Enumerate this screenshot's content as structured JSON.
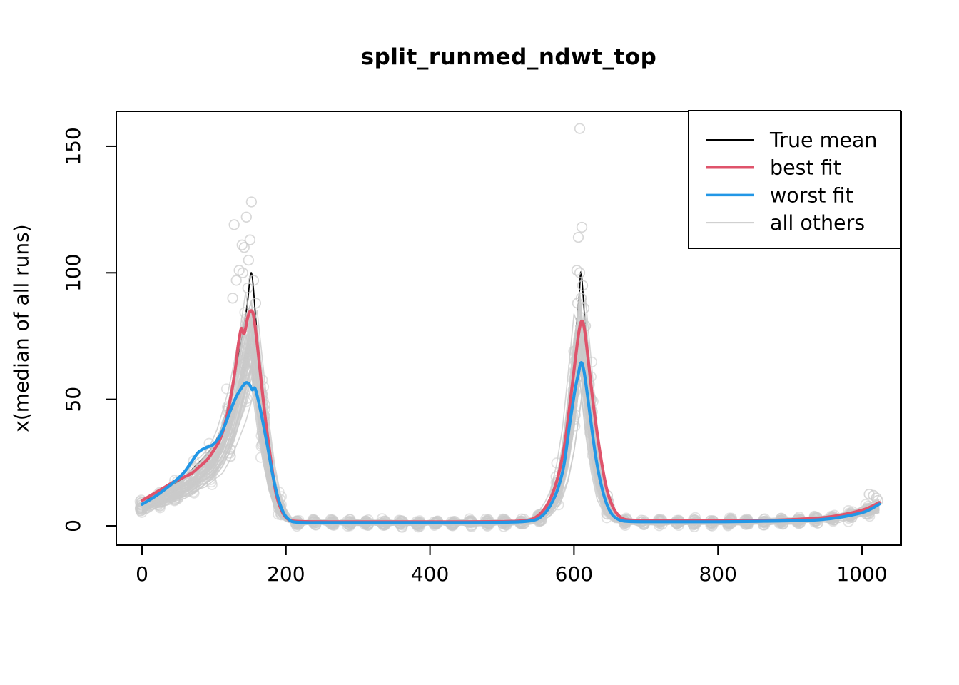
{
  "chart_data": {
    "type": "line",
    "title": "split_runmed_ndwt_top",
    "xlabel": "",
    "ylabel": "x(median of all runs)",
    "xlim": [
      0,
      1024
    ],
    "ylim": [
      0,
      157
    ],
    "x_ticks": [
      0,
      200,
      400,
      600,
      800,
      1000
    ],
    "y_ticks": [
      0,
      50,
      100,
      150
    ],
    "grid": false,
    "background": "#FFFFFF",
    "axis_color": "#000000",
    "legend": {
      "position": "top-right",
      "entries": [
        {
          "label": "True mean",
          "color": "#000000",
          "width": 2
        },
        {
          "label": "best fit",
          "color": "#DF536B",
          "width": 3.5
        },
        {
          "label": "worst fit",
          "color": "#2297E6",
          "width": 3.5
        },
        {
          "label": "all others",
          "color": "#C9C9C9",
          "width": 2
        }
      ]
    },
    "series": [
      {
        "name": "True mean",
        "color": "#000000",
        "width": 1.8,
        "points": [
          [
            0,
            9
          ],
          [
            12,
            11
          ],
          [
            24,
            13
          ],
          [
            36,
            15
          ],
          [
            48,
            17
          ],
          [
            60,
            19.5
          ],
          [
            72,
            23
          ],
          [
            84,
            26.5
          ],
          [
            96,
            30.5
          ],
          [
            108,
            37
          ],
          [
            118,
            46
          ],
          [
            128,
            58
          ],
          [
            138,
            73
          ],
          [
            146,
            87
          ],
          [
            152,
            100
          ],
          [
            158,
            82
          ],
          [
            164,
            62
          ],
          [
            172,
            40
          ],
          [
            180,
            22
          ],
          [
            190,
            9
          ],
          [
            200,
            3.5
          ],
          [
            212,
            1.8
          ],
          [
            240,
            1.5
          ],
          [
            300,
            1.5
          ],
          [
            380,
            1.5
          ],
          [
            460,
            1.5
          ],
          [
            530,
            1.8
          ],
          [
            548,
            3
          ],
          [
            562,
            7
          ],
          [
            574,
            14
          ],
          [
            584,
            26
          ],
          [
            594,
            48
          ],
          [
            602,
            75
          ],
          [
            607,
            90
          ],
          [
            610,
            100
          ],
          [
            616,
            78
          ],
          [
            622,
            55
          ],
          [
            630,
            32
          ],
          [
            638,
            17
          ],
          [
            648,
            8
          ],
          [
            658,
            3.5
          ],
          [
            672,
            2
          ],
          [
            720,
            1.8
          ],
          [
            800,
            1.8
          ],
          [
            860,
            2
          ],
          [
            900,
            2.3
          ],
          [
            940,
            3
          ],
          [
            970,
            4.2
          ],
          [
            1000,
            6.5
          ],
          [
            1012,
            7.8
          ],
          [
            1024,
            9.5
          ]
        ]
      },
      {
        "name": "best fit",
        "color": "#DF536B",
        "width": 4.2,
        "points": [
          [
            0,
            10
          ],
          [
            15,
            12.5
          ],
          [
            30,
            15
          ],
          [
            45,
            17.5
          ],
          [
            60,
            19.5
          ],
          [
            70,
            21
          ],
          [
            80,
            23.5
          ],
          [
            90,
            26
          ],
          [
            100,
            30
          ],
          [
            108,
            34
          ],
          [
            116,
            41
          ],
          [
            124,
            52
          ],
          [
            130,
            63
          ],
          [
            134,
            72
          ],
          [
            138,
            78
          ],
          [
            142,
            76
          ],
          [
            147,
            82.5
          ],
          [
            151,
            85
          ],
          [
            155,
            83
          ],
          [
            160,
            72
          ],
          [
            166,
            56
          ],
          [
            172,
            41
          ],
          [
            179,
            26
          ],
          [
            186,
            13
          ],
          [
            194,
            6
          ],
          [
            202,
            2.8
          ],
          [
            214,
            1.8
          ],
          [
            260,
            1.6
          ],
          [
            340,
            1.6
          ],
          [
            420,
            1.6
          ],
          [
            500,
            1.7
          ],
          [
            535,
            2.2
          ],
          [
            550,
            4
          ],
          [
            562,
            8
          ],
          [
            572,
            14
          ],
          [
            580,
            22
          ],
          [
            588,
            34
          ],
          [
            596,
            52
          ],
          [
            602,
            66
          ],
          [
            607,
            77
          ],
          [
            611,
            81
          ],
          [
            615,
            77
          ],
          [
            620,
            65
          ],
          [
            626,
            50
          ],
          [
            632,
            37
          ],
          [
            639,
            24
          ],
          [
            646,
            14
          ],
          [
            654,
            7.5
          ],
          [
            663,
            3.8
          ],
          [
            674,
            2.4
          ],
          [
            700,
            2.2
          ],
          [
            760,
            2
          ],
          [
            820,
            2
          ],
          [
            870,
            2.2
          ],
          [
            910,
            2.6
          ],
          [
            945,
            3.2
          ],
          [
            975,
            4.5
          ],
          [
            1000,
            6.2
          ],
          [
            1012,
            7.5
          ],
          [
            1024,
            9.2
          ]
        ]
      },
      {
        "name": "worst fit",
        "color": "#2297E6",
        "width": 4.2,
        "points": [
          [
            0,
            8.5
          ],
          [
            15,
            11
          ],
          [
            30,
            14
          ],
          [
            45,
            17.5
          ],
          [
            58,
            21
          ],
          [
            68,
            25
          ],
          [
            78,
            29
          ],
          [
            88,
            30.8
          ],
          [
            98,
            32
          ],
          [
            106,
            34.5
          ],
          [
            114,
            39
          ],
          [
            122,
            45
          ],
          [
            130,
            50.5
          ],
          [
            137,
            54
          ],
          [
            144,
            56.5
          ],
          [
            149,
            56
          ],
          [
            153,
            53.8
          ],
          [
            157,
            54.3
          ],
          [
            162,
            49
          ],
          [
            168,
            41
          ],
          [
            174,
            32
          ],
          [
            181,
            21
          ],
          [
            188,
            12
          ],
          [
            196,
            5.5
          ],
          [
            204,
            2.5
          ],
          [
            216,
            1.4
          ],
          [
            260,
            1.3
          ],
          [
            340,
            1.3
          ],
          [
            420,
            1.3
          ],
          [
            500,
            1.4
          ],
          [
            540,
            2
          ],
          [
            556,
            4
          ],
          [
            568,
            8.5
          ],
          [
            578,
            15
          ],
          [
            586,
            24
          ],
          [
            594,
            40
          ],
          [
            601,
            53
          ],
          [
            606,
            60
          ],
          [
            610,
            64.5
          ],
          [
            614,
            61
          ],
          [
            619,
            51
          ],
          [
            625,
            38
          ],
          [
            631,
            26
          ],
          [
            638,
            16
          ],
          [
            645,
            9
          ],
          [
            653,
            4.5
          ],
          [
            663,
            2.4
          ],
          [
            680,
            1.7
          ],
          [
            740,
            1.6
          ],
          [
            800,
            1.6
          ],
          [
            860,
            1.8
          ],
          [
            900,
            2
          ],
          [
            940,
            2.4
          ],
          [
            970,
            3.4
          ],
          [
            1000,
            5.2
          ],
          [
            1012,
            6.6
          ],
          [
            1024,
            8.6
          ]
        ]
      }
    ],
    "ensemble": {
      "name": "all others",
      "line_color": "#C9C9C9",
      "circle_color": "#CBCBCB",
      "count": 46,
      "seed": 42,
      "scale_range": [
        0.62,
        0.95
      ],
      "marker": "open-circle",
      "circle_radius": 6.8
    },
    "outlier_points": [
      [
        152,
        128
      ],
      [
        145,
        122
      ],
      [
        128,
        119
      ],
      [
        139,
        111
      ],
      [
        142,
        110
      ],
      [
        150,
        113
      ],
      [
        148,
        105
      ],
      [
        135,
        101
      ],
      [
        140,
        100
      ],
      [
        131,
        97
      ],
      [
        155,
        97
      ],
      [
        147,
        94
      ],
      [
        126,
        90
      ],
      [
        158,
        88
      ],
      [
        608,
        157
      ],
      [
        611,
        118
      ],
      [
        606,
        114
      ],
      [
        604,
        101
      ],
      [
        608,
        100
      ],
      [
        612,
        95
      ],
      [
        610,
        90
      ],
      [
        605,
        88
      ],
      [
        614,
        86
      ],
      [
        616,
        79
      ],
      [
        1016,
        12
      ],
      [
        1020,
        11
      ],
      [
        1022,
        10
      ],
      [
        1010,
        12.5
      ]
    ]
  }
}
